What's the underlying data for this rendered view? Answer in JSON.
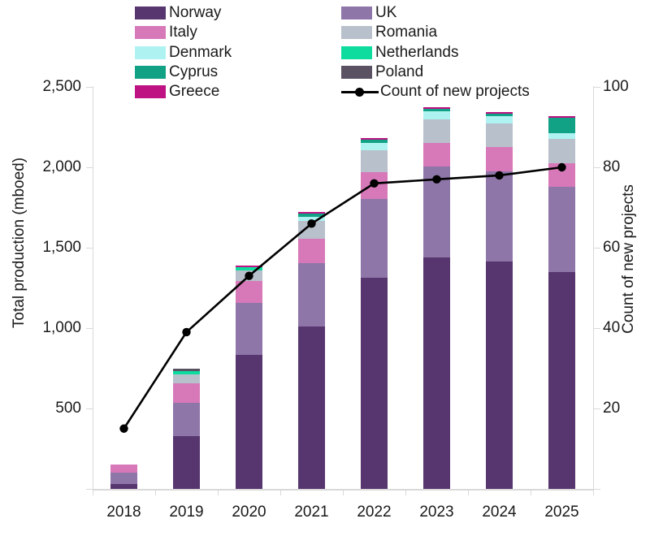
{
  "chart_data": {
    "type": "bar",
    "subtype": "stacked-bar-with-line",
    "categories": [
      "2018",
      "2019",
      "2020",
      "2021",
      "2022",
      "2023",
      "2024",
      "2025"
    ],
    "series": [
      {
        "name": "Norway",
        "color": "#57366F",
        "values": [
          30,
          330,
          835,
          1010,
          1315,
          1440,
          1415,
          1350
        ]
      },
      {
        "name": "UK",
        "color": "#8E76A9",
        "values": [
          70,
          205,
          320,
          395,
          490,
          565,
          560,
          530
        ]
      },
      {
        "name": "Italy",
        "color": "#D779B9",
        "values": [
          50,
          120,
          140,
          150,
          165,
          145,
          150,
          145
        ]
      },
      {
        "name": "Romania",
        "color": "#B8C0CB",
        "values": [
          0,
          55,
          65,
          110,
          135,
          150,
          150,
          150
        ]
      },
      {
        "name": "Denmark",
        "color": "#AEF3F1",
        "values": [
          0,
          0,
          0,
          25,
          45,
          50,
          45,
          35
        ]
      },
      {
        "name": "Netherlands",
        "color": "#0EDC9E",
        "values": [
          0,
          20,
          20,
          0,
          0,
          0,
          0,
          0
        ]
      },
      {
        "name": "Cyprus",
        "color": "#11A185",
        "values": [
          0,
          0,
          0,
          20,
          20,
          15,
          15,
          100
        ]
      },
      {
        "name": "Poland",
        "color": "#5A5263",
        "values": [
          0,
          20,
          0,
          0,
          0,
          0,
          0,
          0
        ]
      },
      {
        "name": "Greece",
        "color": "#BE1182",
        "values": [
          0,
          0,
          10,
          10,
          10,
          10,
          10,
          10
        ]
      }
    ],
    "totals": [
      150,
      750,
      1390,
      1720,
      2180,
      2375,
      2345,
      2320
    ],
    "line_series": {
      "name": "Count of new projects",
      "color": "#000000",
      "values": [
        15,
        39,
        53,
        66,
        76,
        77,
        78,
        80
      ]
    },
    "left_axis": {
      "label": "Total production (mboed)",
      "min": 0,
      "max": 2500,
      "tick_values": [
        500,
        1000,
        1500,
        2000,
        2500
      ],
      "tick_labels": [
        "500",
        "1,000",
        "1,500",
        "2,000",
        "2,500"
      ]
    },
    "right_axis": {
      "label": "Count of new projects",
      "min": 0,
      "max": 100,
      "tick_values": [
        20,
        40,
        60,
        80,
        100
      ],
      "tick_labels": [
        "20",
        "40",
        "60",
        "80",
        "100"
      ]
    },
    "grid": "off",
    "legend": {
      "position": "top",
      "col1": [
        "Norway",
        "Italy",
        "Denmark",
        "Cyprus",
        "Greece"
      ],
      "col2": [
        "UK",
        "Romania",
        "Netherlands",
        "Poland",
        "line"
      ]
    },
    "axis_color": "#D9D9D9",
    "text_color": "#1A1A1A"
  }
}
